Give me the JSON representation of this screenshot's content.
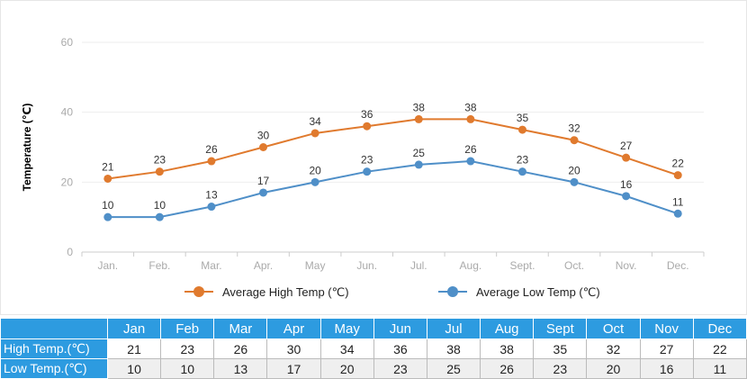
{
  "chart_data": {
    "type": "line",
    "categories": [
      "Jan.",
      "Feb.",
      "Mar.",
      "Apr.",
      "May",
      "Jun.",
      "Jul.",
      "Aug.",
      "Sept.",
      "Oct.",
      "Nov.",
      "Dec."
    ],
    "series": [
      {
        "name": "Average High Temp (℃)",
        "values": [
          21,
          23,
          26,
          30,
          34,
          36,
          38,
          38,
          35,
          32,
          27,
          22
        ],
        "color": "#e07a2e"
      },
      {
        "name": "Average Low Temp (℃)",
        "values": [
          10,
          10,
          13,
          17,
          20,
          23,
          25,
          26,
          23,
          20,
          16,
          11
        ],
        "color": "#4f8fc8"
      }
    ],
    "title": "",
    "xlabel": "",
    "ylabel": "Temperature (℃)",
    "ylim": [
      0,
      60
    ],
    "yticks": [
      0,
      20,
      40,
      60
    ],
    "grid": true,
    "legend_position": "bottom"
  },
  "table": {
    "headers": [
      "",
      "Jan",
      "Feb",
      "Mar",
      "Apr",
      "May",
      "Jun",
      "Jul",
      "Aug",
      "Sept",
      "Oct",
      "Nov",
      "Dec"
    ],
    "rows": [
      {
        "label": "High Temp.(℃)",
        "values": [
          "21",
          "23",
          "26",
          "30",
          "34",
          "36",
          "38",
          "38",
          "35",
          "32",
          "27",
          "22"
        ]
      },
      {
        "label": "Low Temp.(℃)",
        "values": [
          "10",
          "10",
          "13",
          "17",
          "20",
          "23",
          "25",
          "26",
          "23",
          "20",
          "16",
          "11"
        ]
      }
    ]
  }
}
